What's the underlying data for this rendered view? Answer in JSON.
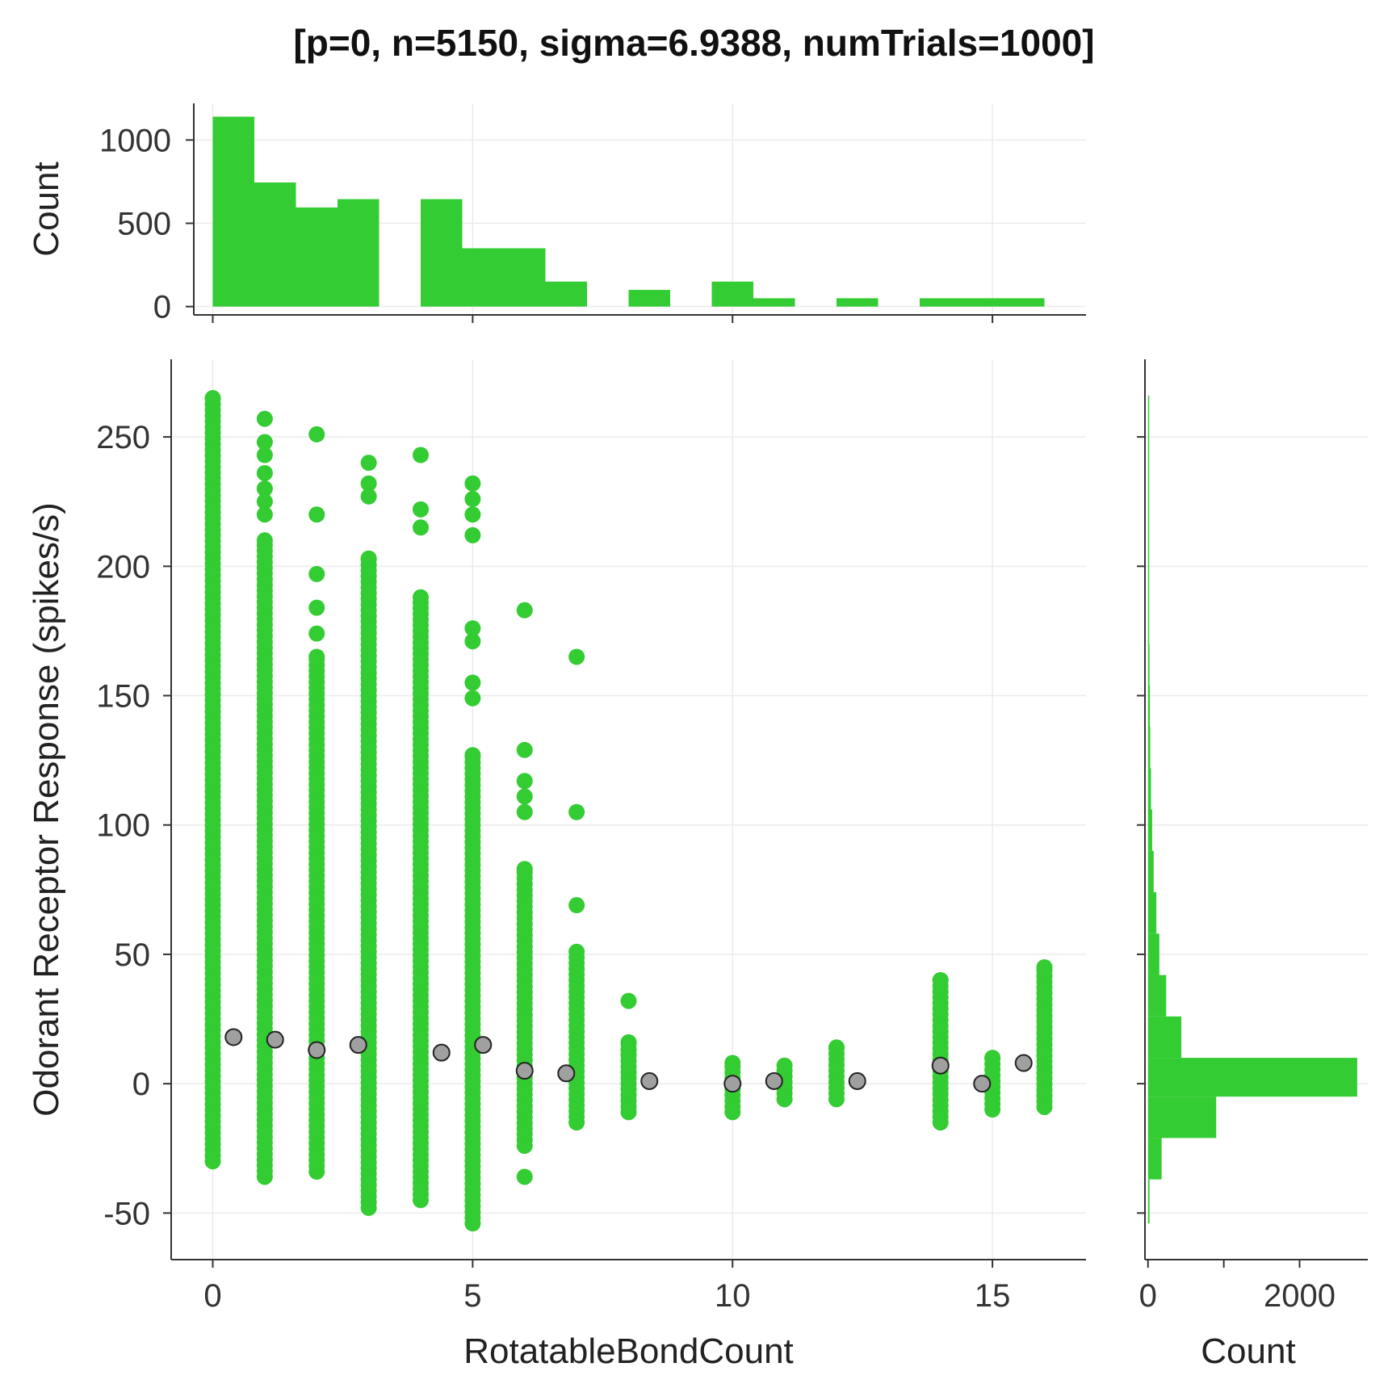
{
  "chart_data": {
    "type": "scatter",
    "title": "[p=0, n=5150, sigma=6.9388, numTrials=1000]",
    "xlabel": "RotatableBondCount",
    "ylabel": "Odorant Receptor Response (spikes/s)",
    "xlim": [
      -0.8,
      16.8
    ],
    "ylim": [
      -68,
      280
    ],
    "x_ticks": [
      0,
      5,
      10,
      15
    ],
    "y_ticks": [
      -50,
      0,
      50,
      100,
      150,
      200,
      250
    ],
    "y_tick_labels": [
      "-50",
      "0",
      "50",
      "100",
      "150",
      "200",
      "250"
    ],
    "grid": true,
    "colors": {
      "points": "#33cc33",
      "means": "#a0a0a0",
      "mean_edge": "#222222",
      "axis": "#333333",
      "grid": "#ebebeb"
    },
    "scatter_columns": [
      {
        "x": 0,
        "min": -30,
        "max": 265,
        "outliers": []
      },
      {
        "x": 1,
        "min": -36,
        "max": 210,
        "outliers": [
          257,
          248,
          243,
          236,
          230,
          225,
          220
        ]
      },
      {
        "x": 2,
        "min": -34,
        "max": 165,
        "outliers": [
          251,
          220,
          197,
          184,
          174
        ]
      },
      {
        "x": 3,
        "min": -48,
        "max": 203,
        "outliers": [
          240,
          232,
          227
        ]
      },
      {
        "x": 4,
        "min": -45,
        "max": 188,
        "outliers": [
          243,
          222,
          215
        ]
      },
      {
        "x": 5,
        "min": -54,
        "max": 127,
        "outliers": [
          232,
          226,
          220,
          212,
          176,
          171,
          155,
          149
        ]
      },
      {
        "x": 6,
        "min": -24,
        "max": 83,
        "outliers": [
          183,
          129,
          117,
          111,
          105,
          -36
        ]
      },
      {
        "x": 7,
        "min": -15,
        "max": 51,
        "outliers": [
          165,
          105,
          69
        ]
      },
      {
        "x": 8,
        "min": -11,
        "max": 16,
        "outliers": [
          32
        ]
      },
      {
        "x": 10,
        "min": -11,
        "max": 8,
        "outliers": []
      },
      {
        "x": 11,
        "min": -6,
        "max": 7,
        "outliers": []
      },
      {
        "x": 12,
        "min": -6,
        "max": 14,
        "outliers": []
      },
      {
        "x": 14,
        "min": -15,
        "max": 40,
        "outliers": []
      },
      {
        "x": 15,
        "min": -10,
        "max": 10,
        "outliers": []
      },
      {
        "x": 16,
        "min": -9,
        "max": 45,
        "outliers": []
      }
    ],
    "bin_means": [
      {
        "x": 0.4,
        "y": 18
      },
      {
        "x": 1.2,
        "y": 17
      },
      {
        "x": 2.0,
        "y": 13
      },
      {
        "x": 2.8,
        "y": 15
      },
      {
        "x": 4.4,
        "y": 12
      },
      {
        "x": 5.2,
        "y": 15
      },
      {
        "x": 6.0,
        "y": 5
      },
      {
        "x": 6.8,
        "y": 4
      },
      {
        "x": 8.4,
        "y": 1
      },
      {
        "x": 10.0,
        "y": 0
      },
      {
        "x": 10.8,
        "y": 1
      },
      {
        "x": 12.4,
        "y": 1
      },
      {
        "x": 14.0,
        "y": 7
      },
      {
        "x": 14.8,
        "y": 0
      },
      {
        "x": 15.6,
        "y": 8
      }
    ],
    "top_histogram": {
      "ylabel": "Count",
      "ylim": [
        -50,
        1220
      ],
      "y_ticks": [
        0,
        500,
        1000
      ],
      "y_tick_labels": [
        "0",
        "500",
        "1000"
      ],
      "bins": [
        {
          "x0": 0.0,
          "x1": 0.8,
          "count": 1140
        },
        {
          "x0": 0.8,
          "x1": 1.6,
          "count": 745
        },
        {
          "x0": 1.6,
          "x1": 2.4,
          "count": 595
        },
        {
          "x0": 2.4,
          "x1": 3.2,
          "count": 645
        },
        {
          "x0": 4.0,
          "x1": 4.8,
          "count": 645
        },
        {
          "x0": 4.8,
          "x1": 5.6,
          "count": 350
        },
        {
          "x0": 5.6,
          "x1": 6.4,
          "count": 350
        },
        {
          "x0": 6.4,
          "x1": 7.2,
          "count": 150
        },
        {
          "x0": 8.0,
          "x1": 8.8,
          "count": 100
        },
        {
          "x0": 9.6,
          "x1": 10.4,
          "count": 150
        },
        {
          "x0": 10.4,
          "x1": 11.2,
          "count": 50
        },
        {
          "x0": 12.0,
          "x1": 12.8,
          "count": 50
        },
        {
          "x0": 13.6,
          "x1": 14.4,
          "count": 50
        },
        {
          "x0": 14.4,
          "x1": 15.2,
          "count": 50
        },
        {
          "x0": 15.2,
          "x1": 16.0,
          "count": 50
        }
      ]
    },
    "right_histogram": {
      "xlabel": "Count",
      "xlim": [
        -40,
        2900
      ],
      "x_ticks": [
        0,
        1000,
        2000
      ],
      "x_tick_labels": [
        "0",
        "",
        "2000"
      ],
      "bins": [
        {
          "y0": -54,
          "y1": -37,
          "count": 20
        },
        {
          "y0": -37,
          "y1": -21,
          "count": 180
        },
        {
          "y0": -21,
          "y1": -5,
          "count": 900
        },
        {
          "y0": -5,
          "y1": 10,
          "count": 2760
        },
        {
          "y0": 10,
          "y1": 26,
          "count": 440
        },
        {
          "y0": 26,
          "y1": 42,
          "count": 240
        },
        {
          "y0": 42,
          "y1": 58,
          "count": 150
        },
        {
          "y0": 58,
          "y1": 74,
          "count": 110
        },
        {
          "y0": 74,
          "y1": 90,
          "count": 75
        },
        {
          "y0": 90,
          "y1": 106,
          "count": 55
        },
        {
          "y0": 106,
          "y1": 122,
          "count": 40
        },
        {
          "y0": 122,
          "y1": 138,
          "count": 30
        },
        {
          "y0": 138,
          "y1": 154,
          "count": 25
        },
        {
          "y0": 154,
          "y1": 170,
          "count": 20
        },
        {
          "y0": 170,
          "y1": 186,
          "count": 15
        },
        {
          "y0": 186,
          "y1": 202,
          "count": 10
        },
        {
          "y0": 202,
          "y1": 218,
          "count": 8
        },
        {
          "y0": 218,
          "y1": 234,
          "count": 6
        },
        {
          "y0": 234,
          "y1": 250,
          "count": 5
        },
        {
          "y0": 250,
          "y1": 266,
          "count": 4
        }
      ]
    }
  }
}
